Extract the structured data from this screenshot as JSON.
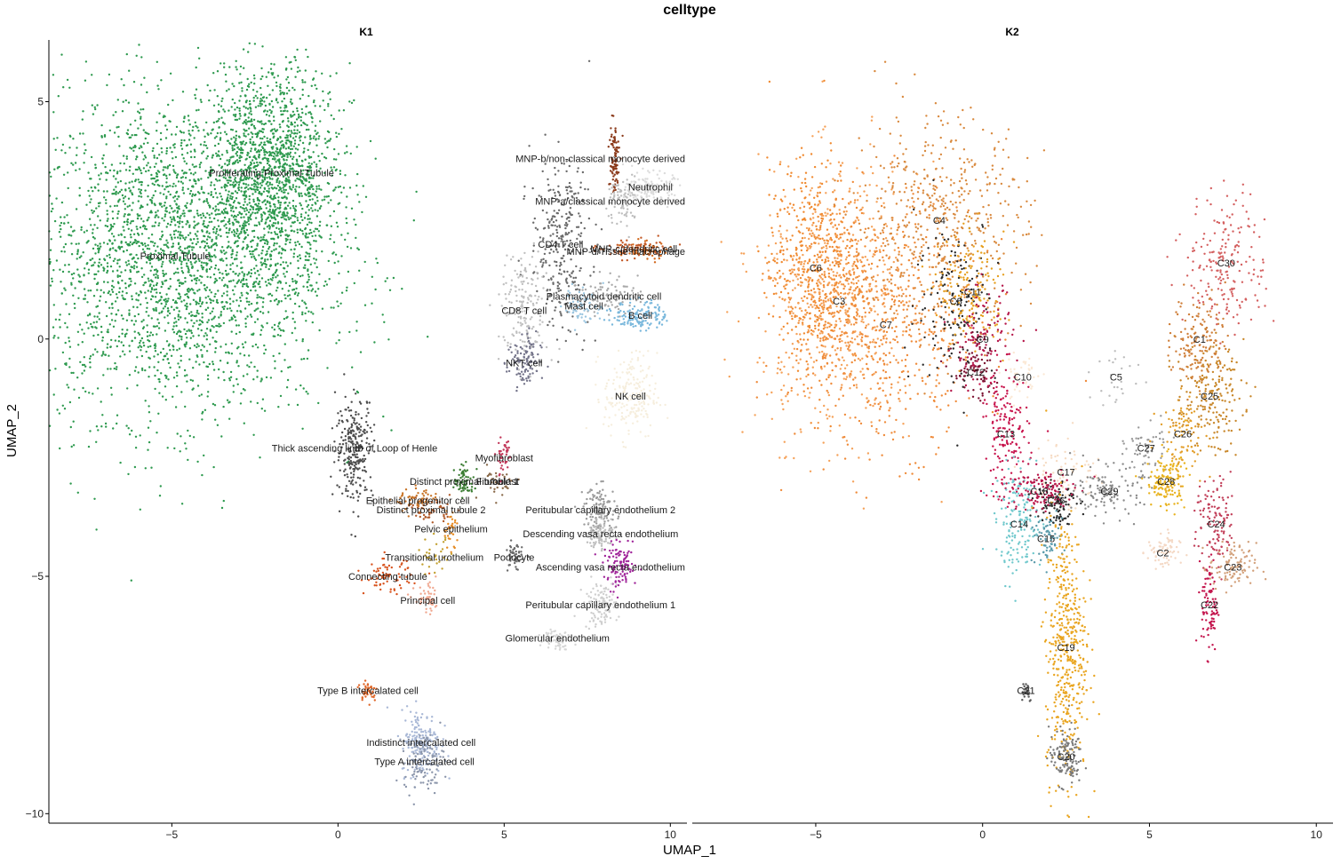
{
  "chart_data": {
    "type": "scatter",
    "title": "celltype",
    "xlabel": "UMAP_1",
    "ylabel": "UMAP_2",
    "xlim": [
      -8.7,
      10.5
    ],
    "ylim": [
      -10.2,
      6.3
    ],
    "x_ticks": [
      -5,
      0,
      5,
      10
    ],
    "y_ticks": [
      5,
      0,
      -5,
      -10
    ],
    "panels": [
      {
        "name": "K1",
        "clusters": [
          {
            "label": "Proximal Tubule",
            "x": -4.9,
            "y": 1.75,
            "sx": 2.3,
            "sy": 1.7,
            "n": 2800,
            "color": "#2e9a4f"
          },
          {
            "label": "Proliferating Proximal Tubule",
            "x": -2.0,
            "y": 3.5,
            "sx": 1.0,
            "sy": 1.1,
            "n": 1400,
            "color": "#2e9a4f"
          },
          {
            "label": "Thick ascending limb of Loop of Henle",
            "x": 0.5,
            "y": -2.3,
            "sx": 0.28,
            "sy": 0.55,
            "n": 260,
            "color": "#4d4d4d"
          },
          {
            "label": "Distinct proximal tubule 1",
            "x": 3.8,
            "y": -3.0,
            "sx": 0.15,
            "sy": 0.15,
            "n": 70,
            "color": "#3b7d33"
          },
          {
            "label": "Epithelial progenitor cell",
            "x": 2.4,
            "y": -3.4,
            "sx": 0.35,
            "sy": 0.12,
            "n": 60,
            "color": "#c9762a"
          },
          {
            "label": "Distinct proximal tubule 2",
            "x": 2.8,
            "y": -3.6,
            "sx": 0.3,
            "sy": 0.15,
            "n": 50,
            "color": "#b05a2a"
          },
          {
            "label": "Pelvic epithelium",
            "x": 3.4,
            "y": -4.0,
            "sx": 0.12,
            "sy": 0.2,
            "n": 30,
            "color": "#e58a22"
          },
          {
            "label": "Transitional urothelium",
            "x": 2.9,
            "y": -4.6,
            "sx": 0.25,
            "sy": 0.2,
            "n": 30,
            "color": "#c2a030"
          },
          {
            "label": "Connecting tubule",
            "x": 1.5,
            "y": -5.0,
            "sx": 0.35,
            "sy": 0.18,
            "n": 70,
            "color": "#d8541f"
          },
          {
            "label": "Principal cell",
            "x": 2.7,
            "y": -5.5,
            "sx": 0.2,
            "sy": 0.15,
            "n": 50,
            "color": "#f0a890"
          },
          {
            "label": "Myofibroblast",
            "x": 5.0,
            "y": -2.5,
            "sx": 0.12,
            "sy": 0.25,
            "n": 40,
            "color": "#c2385a"
          },
          {
            "label": "Fibroblast",
            "x": 4.8,
            "y": -3.0,
            "sx": 0.3,
            "sy": 0.2,
            "n": 30,
            "color": "#8a6a4a"
          },
          {
            "label": "Podocyte",
            "x": 5.3,
            "y": -4.6,
            "sx": 0.12,
            "sy": 0.15,
            "n": 50,
            "color": "#6b6b6b"
          },
          {
            "label": "Peritubular capillary endothelium 2",
            "x": 7.9,
            "y": -3.6,
            "sx": 0.25,
            "sy": 0.25,
            "n": 130,
            "color": "#9a9a9a"
          },
          {
            "label": "Descending vasa recta endothelium",
            "x": 7.9,
            "y": -4.1,
            "sx": 0.22,
            "sy": 0.18,
            "n": 90,
            "color": "#bdbdbd"
          },
          {
            "label": "Ascending vasa recta endothelium",
            "x": 8.5,
            "y": -4.8,
            "sx": 0.25,
            "sy": 0.22,
            "n": 110,
            "color": "#a0259a"
          },
          {
            "label": "Peritubular capillary endothelium 1",
            "x": 7.9,
            "y": -5.6,
            "sx": 0.25,
            "sy": 0.25,
            "n": 110,
            "color": "#cfcfcf"
          },
          {
            "label": "Glomerular endothelium",
            "x": 6.6,
            "y": -6.3,
            "sx": 0.2,
            "sy": 0.12,
            "n": 70,
            "color": "#d6d6d6"
          },
          {
            "label": "MNP-b/non-classical monocyte derived",
            "x": 8.3,
            "y": 3.8,
            "sx": 0.08,
            "sy": 0.4,
            "n": 90,
            "color": "#8b3a1a"
          },
          {
            "label": "MNP-a/classical monocyte derived",
            "x": 8.6,
            "y": 2.9,
            "sx": 0.25,
            "sy": 0.3,
            "n": 80,
            "color": "#bdbdbd"
          },
          {
            "label": "Neutrophil",
            "x": 9.4,
            "y": 3.2,
            "sx": 0.35,
            "sy": 0.15,
            "n": 120,
            "color": "#dcdcdc"
          },
          {
            "label": "MNP-c/dendritic cell",
            "x": 8.9,
            "y": 1.9,
            "sx": 0.5,
            "sy": 0.1,
            "n": 80,
            "color": "#c45a28"
          },
          {
            "label": "MNP-d/Tissue macrophage",
            "x": 9.2,
            "y": 1.85,
            "sx": 0.4,
            "sy": 0.1,
            "n": 50,
            "color": "#d2691e"
          },
          {
            "label": "CD4 T cell",
            "x": 6.7,
            "y": 2.0,
            "sx": 0.45,
            "sy": 0.9,
            "n": 300,
            "color": "#6a6a6a"
          },
          {
            "label": "Plasmacytoid dendritic cell",
            "x": 8.0,
            "y": 0.9,
            "sx": 0.5,
            "sy": 0.2,
            "n": 90,
            "color": "#a8a8a8"
          },
          {
            "label": "Mast cell",
            "x": 7.4,
            "y": 0.7,
            "sx": 0.3,
            "sy": 0.2,
            "n": 60,
            "color": "#9cc6e0"
          },
          {
            "label": "B cell",
            "x": 9.1,
            "y": 0.5,
            "sx": 0.4,
            "sy": 0.15,
            "n": 140,
            "color": "#7ab8dc"
          },
          {
            "label": "CD8 T cell",
            "x": 5.6,
            "y": 0.6,
            "sx": 0.35,
            "sy": 0.6,
            "n": 180,
            "color": "#c0c0c0"
          },
          {
            "label": "NKT cell",
            "x": 5.6,
            "y": -0.5,
            "sx": 0.25,
            "sy": 0.3,
            "n": 110,
            "color": "#74748a"
          },
          {
            "label": "NK cell",
            "x": 8.8,
            "y": -1.2,
            "sx": 0.4,
            "sy": 0.45,
            "n": 200,
            "color": "#f6eedd"
          },
          {
            "label": "Type B intercalated cell",
            "x": 0.9,
            "y": -7.4,
            "sx": 0.15,
            "sy": 0.12,
            "n": 40,
            "color": "#e0682a"
          },
          {
            "label": "Indistinct intercalated cell",
            "x": 2.5,
            "y": -8.5,
            "sx": 0.3,
            "sy": 0.35,
            "n": 180,
            "color": "#a9b8d6"
          },
          {
            "label": "Type A intercalated cell",
            "x": 2.6,
            "y": -8.9,
            "sx": 0.3,
            "sy": 0.3,
            "n": 110,
            "color": "#8b95aa"
          }
        ]
      },
      {
        "name": "K2",
        "clusters": [
          {
            "label": "C6",
            "x": -5.0,
            "y": 1.5,
            "sx": 0.7,
            "sy": 1.1,
            "n": 500,
            "color": "#f08a30"
          },
          {
            "label": "C3",
            "x": -4.3,
            "y": 0.8,
            "sx": 1.2,
            "sy": 1.4,
            "n": 700,
            "color": "#f5a25a"
          },
          {
            "label": "C7",
            "x": -2.9,
            "y": 0.3,
            "sx": 1.4,
            "sy": 1.3,
            "n": 550,
            "color": "#ef8b3a"
          },
          {
            "label": "C4",
            "x": -1.3,
            "y": 2.5,
            "sx": 1.3,
            "sy": 1.1,
            "n": 500,
            "color": "#d98a3f"
          },
          {
            "label": "C8",
            "x": -0.8,
            "y": 0.8,
            "sx": 0.6,
            "sy": 0.9,
            "n": 160,
            "color": "#2a2a2a"
          },
          {
            "label": "C11",
            "x": -0.3,
            "y": 1.0,
            "sx": 0.5,
            "sy": 0.6,
            "n": 170,
            "color": "#e6a021"
          },
          {
            "label": "C9",
            "x": 0.0,
            "y": 0.0,
            "sx": 0.45,
            "sy": 0.55,
            "n": 120,
            "color": "#b5174a"
          },
          {
            "label": "C12",
            "x": -0.2,
            "y": -0.7,
            "sx": 0.35,
            "sy": 0.3,
            "n": 80,
            "color": "#7a1030"
          },
          {
            "label": "C10",
            "x": 1.2,
            "y": -0.8,
            "sx": 0.3,
            "sy": 0.3,
            "n": 40,
            "color": "#fbe8d4"
          },
          {
            "label": "C13",
            "x": 0.7,
            "y": -2.0,
            "sx": 0.35,
            "sy": 0.7,
            "n": 170,
            "color": "#c8164e"
          },
          {
            "label": "C5",
            "x": 4.0,
            "y": -0.8,
            "sx": 0.4,
            "sy": 0.35,
            "n": 25,
            "color": "#bdbdbd"
          },
          {
            "label": "C17",
            "x": 2.5,
            "y": -2.8,
            "sx": 0.5,
            "sy": 0.4,
            "n": 80,
            "color": "#f6dcc4"
          },
          {
            "label": "C14",
            "x": 1.1,
            "y": -3.9,
            "sx": 0.35,
            "sy": 0.55,
            "n": 160,
            "color": "#6fc8cc"
          },
          {
            "label": "C15",
            "x": 1.9,
            "y": -4.2,
            "sx": 0.25,
            "sy": 0.25,
            "n": 70,
            "color": "#5a9aaa"
          },
          {
            "label": "C16",
            "x": 2.2,
            "y": -3.4,
            "sx": 0.3,
            "sy": 0.25,
            "n": 100,
            "color": "#2a2a2a"
          },
          {
            "label": "C18",
            "x": 1.7,
            "y": -3.2,
            "sx": 0.5,
            "sy": 0.25,
            "n": 120,
            "color": "#b8164a"
          },
          {
            "label": "C29",
            "x": 3.8,
            "y": -3.2,
            "sx": 0.5,
            "sy": 0.25,
            "n": 130,
            "color": "#8a8a8a"
          },
          {
            "label": "C27",
            "x": 4.9,
            "y": -2.3,
            "sx": 0.3,
            "sy": 0.25,
            "n": 60,
            "color": "#9a9a9a"
          },
          {
            "label": "C28",
            "x": 5.5,
            "y": -3.0,
            "sx": 0.3,
            "sy": 0.3,
            "n": 140,
            "color": "#e8b21e"
          },
          {
            "label": "C26",
            "x": 6.0,
            "y": -2.0,
            "sx": 0.35,
            "sy": 0.4,
            "n": 90,
            "color": "#e29e2a"
          },
          {
            "label": "C25",
            "x": 6.8,
            "y": -1.2,
            "sx": 0.5,
            "sy": 0.55,
            "n": 200,
            "color": "#c8872a"
          },
          {
            "label": "C1",
            "x": 6.5,
            "y": 0.0,
            "sx": 0.4,
            "sy": 0.5,
            "n": 150,
            "color": "#cf7f3a"
          },
          {
            "label": "C30",
            "x": 7.3,
            "y": 1.6,
            "sx": 0.6,
            "sy": 0.7,
            "n": 200,
            "color": "#d46060"
          },
          {
            "label": "C24",
            "x": 7.0,
            "y": -3.9,
            "sx": 0.3,
            "sy": 0.5,
            "n": 120,
            "color": "#c2405a"
          },
          {
            "label": "C2",
            "x": 5.4,
            "y": -4.5,
            "sx": 0.25,
            "sy": 0.2,
            "n": 70,
            "color": "#f4d8c4"
          },
          {
            "label": "C23",
            "x": 7.5,
            "y": -4.8,
            "sx": 0.35,
            "sy": 0.25,
            "n": 100,
            "color": "#d2a07a"
          },
          {
            "label": "C22",
            "x": 6.8,
            "y": -5.6,
            "sx": 0.12,
            "sy": 0.5,
            "n": 90,
            "color": "#c4164e"
          },
          {
            "label": "C21",
            "x": 1.3,
            "y": -7.4,
            "sx": 0.1,
            "sy": 0.12,
            "n": 30,
            "color": "#5a5a5a"
          },
          {
            "label": "C19",
            "x": 2.5,
            "y": -6.5,
            "sx": 0.3,
            "sy": 1.4,
            "n": 480,
            "color": "#e9a520"
          },
          {
            "label": "C20",
            "x": 2.5,
            "y": -8.8,
            "sx": 0.25,
            "sy": 0.3,
            "n": 130,
            "color": "#7a7a7a"
          }
        ]
      }
    ]
  }
}
